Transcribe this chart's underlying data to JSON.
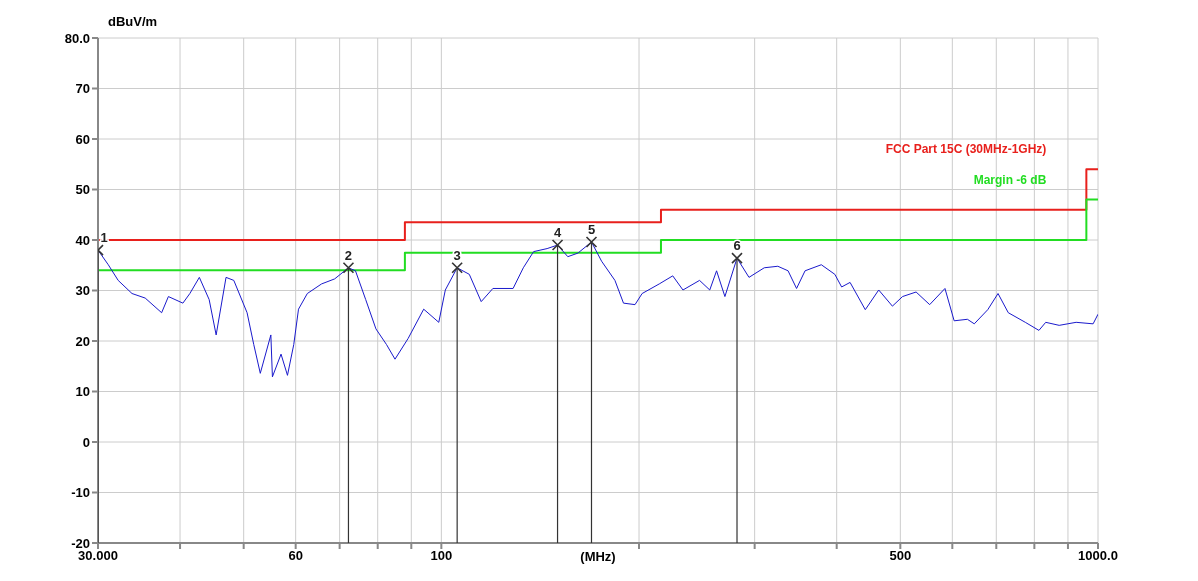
{
  "chart_data": {
    "type": "line",
    "xlabel": "(MHz)",
    "ylabel": "dBuV/m",
    "log": "x",
    "grid": true,
    "xlim": [
      30,
      1000
    ],
    "ylim": [
      -20,
      80
    ],
    "xticks": [
      {
        "value": 30,
        "label": "30.000"
      },
      {
        "value": 40,
        "label": null
      },
      {
        "value": 50,
        "label": null
      },
      60,
      {
        "value": 70,
        "label": null
      },
      {
        "value": 80,
        "label": null
      },
      {
        "value": 90,
        "label": null
      },
      100,
      {
        "value": 200,
        "label": null
      },
      {
        "value": 300,
        "label": null
      },
      {
        "value": 400,
        "label": null
      },
      500,
      {
        "value": 600,
        "label": null
      },
      {
        "value": 700,
        "label": null
      },
      {
        "value": 800,
        "label": null
      },
      {
        "value": 900,
        "label": null
      },
      {
        "value": 1000,
        "label": "1000.0"
      }
    ],
    "yticks": [
      -20,
      -10,
      0,
      10,
      20,
      30,
      40,
      50,
      60,
      70,
      {
        "value": 80,
        "label": "80.0"
      }
    ],
    "series": [
      {
        "name": "FCC Part 15C (30MHz-1GHz)",
        "type": "step",
        "color": "#e8201c",
        "x": [
          30,
          88,
          216,
          960,
          1000
        ],
        "values": [
          40,
          43.5,
          46,
          54,
          54
        ]
      },
      {
        "name": "Margin -6 dB",
        "type": "step",
        "color": "#22dd22",
        "x": [
          30,
          88,
          216,
          960,
          1000
        ],
        "values": [
          34,
          37.5,
          40,
          48,
          48
        ]
      },
      {
        "color": "#1a1acc",
        "x": [
          30,
          31.1,
          32.2,
          33.8,
          35.4,
          37.5,
          38.4,
          40.4,
          41.4,
          42.8,
          44.3,
          45.4,
          47,
          48.3,
          50.6,
          51.8,
          53,
          55,
          55.3,
          57,
          58.3,
          59.6,
          60.6,
          62.5,
          65.7,
          68.8,
          72.2,
          74,
          76.7,
          79.5,
          82.5,
          85,
          89,
          94,
          99.1,
          101.4,
          105.7,
          110.3,
          115,
          119.8,
          128.6,
          133.3,
          138.2,
          144.9,
          150.3,
          155.8,
          161.4,
          169.3,
          175.4,
          183.8,
          189.4,
          197.2,
          202.2,
          214.7,
          225.1,
          233.3,
          247.3,
          256.3,
          262.5,
          270.3,
          282,
          294.1,
          310.3,
          325.4,
          337.3,
          347.5,
          358,
          379,
          397.4,
          407,
          419.2,
          442.2,
          463.5,
          486.3,
          503.9,
          528.4,
          554.2,
          584.7,
          603.9,
          632.6,
          648,
          679.4,
          704.3,
          730.1,
          775,
          812.9,
          832.5,
          872.8,
          926.2,
          983,
          1000
        ],
        "values": [
          38,
          35.1,
          32,
          29.4,
          28.5,
          25.6,
          28.8,
          27.5,
          29.4,
          32.6,
          28.2,
          21.2,
          32.6,
          32,
          25.6,
          19.3,
          13.6,
          21.2,
          12.9,
          17.4,
          13.2,
          19.3,
          26.3,
          29.4,
          31.3,
          32.3,
          34.5,
          33.9,
          28.2,
          22.4,
          19.3,
          16.4,
          20.5,
          26.3,
          23.7,
          30.1,
          34.5,
          33.2,
          27.8,
          30.4,
          30.4,
          34.5,
          37.7,
          38.3,
          39,
          36.7,
          37.4,
          39.6,
          35.8,
          32,
          27.5,
          27.2,
          29.4,
          31.3,
          32.9,
          30.1,
          32,
          30.1,
          33.9,
          28.8,
          36.4,
          32.6,
          34.5,
          34.8,
          33.9,
          30.4,
          33.9,
          35.1,
          33.2,
          30.7,
          31.6,
          26.2,
          30.1,
          26.9,
          28.8,
          29.7,
          27.2,
          30.4,
          24,
          24.3,
          23.4,
          26.2,
          29.4,
          25.6,
          23.7,
          22.1,
          23.7,
          23.1,
          23.7,
          23.4,
          25.3
        ]
      },
      {
        "type": "lollipop",
        "color": "#333333",
        "marker": "cross",
        "x": [
          30,
          72.2,
          105.7,
          150.3,
          169.3,
          282
        ],
        "values": [
          38,
          34.5,
          34.5,
          39,
          39.6,
          36.4
        ]
      }
    ],
    "annotations": [
      {
        "text": "1",
        "x": 30,
        "y": 38
      },
      {
        "text": "2",
        "x": 72.2,
        "y": 34.5
      },
      {
        "text": "3",
        "x": 105.7,
        "y": 34.5
      },
      {
        "text": "4",
        "x": 150.3,
        "y": 39
      },
      {
        "text": "5",
        "x": 169.3,
        "y": 39.6
      },
      {
        "text": "6",
        "x": 282,
        "y": 36.4
      }
    ]
  }
}
